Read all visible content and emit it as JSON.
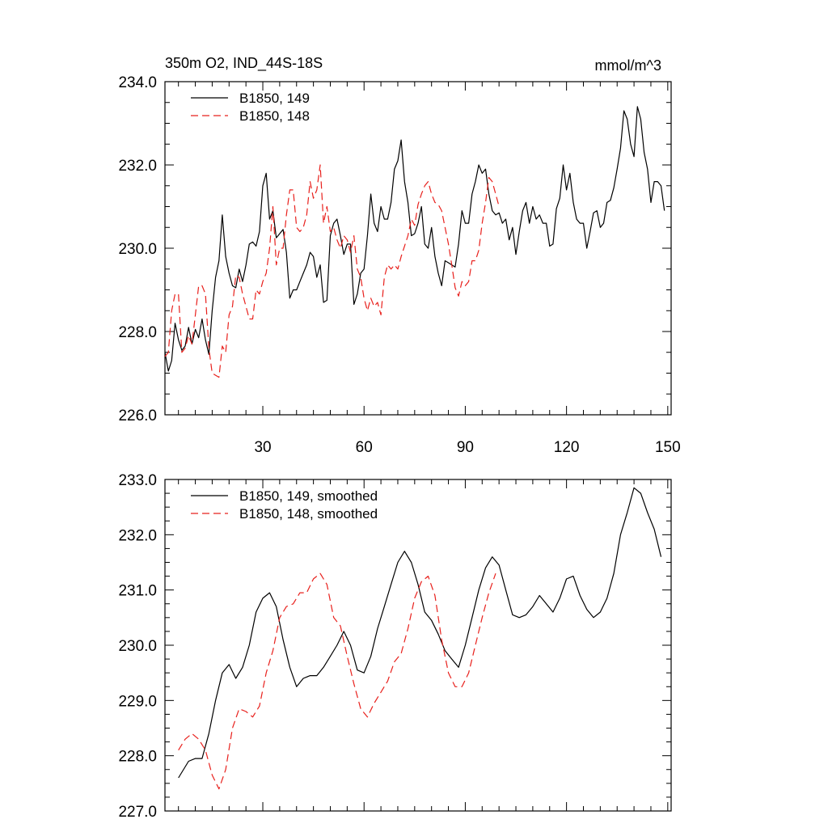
{
  "chart_data": [
    {
      "type": "line",
      "title_left": "350m O2, IND_44S-18S",
      "title_right": "mmol/m^3",
      "xlim": [
        1,
        151
      ],
      "ylim": [
        226.0,
        234.0
      ],
      "x_ticks": [
        30,
        60,
        90,
        120,
        150
      ],
      "x_tick_labels": [
        "30",
        "60",
        "90",
        "120",
        "150"
      ],
      "y_ticks": [
        226.0,
        228.0,
        230.0,
        232.0,
        234.0
      ],
      "y_tick_labels": [
        "226.0",
        "228.0",
        "230.0",
        "232.0",
        "234.0"
      ],
      "legend_position": "top-left",
      "series": [
        {
          "name": "B1850, 149",
          "color": "#000000",
          "style": "solid",
          "x_start": 1,
          "values": [
            227.5,
            227.05,
            227.3,
            228.2,
            227.8,
            227.55,
            227.65,
            228.1,
            227.7,
            228.05,
            227.85,
            228.3,
            227.8,
            227.45,
            228.5,
            229.3,
            229.7,
            230.8,
            229.8,
            229.4,
            229.1,
            229.05,
            229.5,
            229.2,
            229.6,
            230.1,
            230.15,
            230.05,
            230.4,
            231.5,
            231.8,
            230.7,
            230.9,
            230.25,
            230.35,
            230.45,
            229.9,
            228.8,
            229.0,
            229.0,
            229.2,
            229.4,
            229.6,
            229.9,
            229.8,
            229.3,
            229.6,
            228.7,
            228.75,
            230.3,
            230.6,
            230.7,
            230.3,
            229.85,
            230.1,
            230.1,
            228.65,
            228.9,
            229.4,
            229.5,
            230.3,
            231.3,
            230.6,
            230.4,
            231.0,
            230.7,
            230.7,
            231.1,
            231.9,
            232.1,
            232.6,
            231.6,
            231.1,
            230.3,
            230.35,
            230.6,
            231.0,
            230.1,
            230.0,
            230.5,
            229.8,
            229.4,
            229.1,
            229.7,
            229.65,
            229.6,
            229.55,
            230.1,
            230.9,
            230.6,
            230.6,
            231.3,
            231.6,
            232.0,
            231.8,
            231.9,
            231.3,
            230.9,
            230.8,
            230.85,
            230.6,
            230.7,
            230.2,
            230.5,
            229.85,
            230.4,
            230.9,
            231.1,
            230.6,
            231.0,
            230.7,
            230.8,
            230.6,
            230.6,
            230.05,
            230.1,
            230.95,
            231.2,
            232.0,
            231.4,
            231.8,
            231.1,
            230.7,
            230.6,
            230.6,
            230.0,
            230.4,
            230.85,
            230.9,
            230.5,
            230.6,
            231.1,
            231.15,
            231.45,
            231.9,
            232.4,
            233.3,
            233.1,
            232.5,
            232.2,
            233.4,
            233.1,
            232.3,
            231.9,
            231.1,
            231.6,
            231.6,
            231.5,
            230.9
          ]
        },
        {
          "name": "B1850, 148",
          "color": "#e8201c",
          "style": "dashed",
          "x_start": 1,
          "values": [
            227.4,
            227.5,
            228.5,
            228.9,
            228.9,
            227.5,
            227.6,
            227.9,
            227.7,
            228.4,
            229.1,
            229.1,
            228.9,
            227.6,
            227.0,
            226.95,
            226.9,
            227.65,
            227.5,
            228.4,
            228.6,
            229.35,
            229.3,
            228.9,
            228.6,
            228.3,
            228.3,
            229.0,
            228.9,
            229.2,
            229.4,
            230.0,
            231.0,
            229.6,
            230.0,
            230.0,
            230.8,
            231.4,
            231.4,
            230.5,
            230.4,
            230.5,
            230.8,
            231.6,
            231.2,
            231.4,
            232.0,
            230.6,
            231.0,
            230.4,
            230.5,
            230.2,
            230.0,
            230.3,
            230.2,
            229.9,
            230.3,
            229.5,
            229.3,
            228.8,
            228.5,
            228.8,
            228.6,
            228.7,
            228.4,
            229.3,
            229.6,
            229.5,
            229.6,
            229.5,
            229.8,
            230.05,
            230.3,
            230.7,
            230.55,
            231.05,
            231.3,
            231.5,
            231.6,
            231.3,
            231.1,
            231.05,
            230.9,
            230.5,
            230.1,
            229.6,
            229.05,
            228.85,
            229.2,
            229.1,
            229.2,
            229.7,
            229.7,
            229.95,
            230.6,
            231.1,
            231.7,
            231.6,
            231.3,
            231.0
          ]
        }
      ]
    },
    {
      "type": "line",
      "xlim": [
        1,
        151
      ],
      "ylim": [
        227.0,
        233.0
      ],
      "y_ticks": [
        227.0,
        228.0,
        229.0,
        230.0,
        231.0,
        232.0,
        233.0
      ],
      "y_tick_labels": [
        "227.0",
        "228.0",
        "229.0",
        "230.0",
        "231.0",
        "232.0",
        "233.0"
      ],
      "x_ticks": [
        30,
        60,
        90,
        120,
        150
      ],
      "legend_position": "top-left",
      "series": [
        {
          "name": "B1850, 149, smoothed",
          "color": "#000000",
          "style": "solid",
          "points": [
            [
              5,
              227.6
            ],
            [
              8,
              227.9
            ],
            [
              10,
              227.95
            ],
            [
              12,
              227.95
            ],
            [
              14,
              228.4
            ],
            [
              16,
              229.0
            ],
            [
              18,
              229.5
            ],
            [
              20,
              229.65
            ],
            [
              22,
              229.4
            ],
            [
              24,
              229.6
            ],
            [
              26,
              230.0
            ],
            [
              28,
              230.6
            ],
            [
              30,
              230.85
            ],
            [
              32,
              230.95
            ],
            [
              34,
              230.7
            ],
            [
              36,
              230.1
            ],
            [
              38,
              229.6
            ],
            [
              40,
              229.25
            ],
            [
              42,
              229.4
            ],
            [
              44,
              229.45
            ],
            [
              46,
              229.45
            ],
            [
              48,
              229.6
            ],
            [
              50,
              229.8
            ],
            [
              52,
              230.0
            ],
            [
              54,
              230.25
            ],
            [
              56,
              230.0
            ],
            [
              58,
              229.55
            ],
            [
              60,
              229.5
            ],
            [
              62,
              229.8
            ],
            [
              64,
              230.3
            ],
            [
              66,
              230.7
            ],
            [
              68,
              231.1
            ],
            [
              70,
              231.5
            ],
            [
              72,
              231.7
            ],
            [
              74,
              231.5
            ],
            [
              76,
              231.1
            ],
            [
              78,
              230.6
            ],
            [
              80,
              230.45
            ],
            [
              82,
              230.2
            ],
            [
              84,
              229.9
            ],
            [
              86,
              229.75
            ],
            [
              88,
              229.6
            ],
            [
              90,
              230.0
            ],
            [
              92,
              230.5
            ],
            [
              94,
              231.0
            ],
            [
              96,
              231.4
            ],
            [
              98,
              231.6
            ],
            [
              100,
              231.45
            ],
            [
              102,
              231.0
            ],
            [
              104,
              230.55
            ],
            [
              106,
              230.5
            ],
            [
              108,
              230.55
            ],
            [
              110,
              230.7
            ],
            [
              112,
              230.9
            ],
            [
              114,
              230.75
            ],
            [
              116,
              230.6
            ],
            [
              118,
              230.85
            ],
            [
              120,
              231.2
            ],
            [
              122,
              231.25
            ],
            [
              124,
              230.9
            ],
            [
              126,
              230.65
            ],
            [
              128,
              230.5
            ],
            [
              130,
              230.6
            ],
            [
              132,
              230.85
            ],
            [
              134,
              231.3
            ],
            [
              136,
              232.0
            ],
            [
              138,
              232.4
            ],
            [
              140,
              232.85
            ],
            [
              142,
              232.75
            ],
            [
              144,
              232.4
            ],
            [
              146,
              232.1
            ],
            [
              148,
              231.6
            ]
          ]
        },
        {
          "name": "B1850, 148, smoothed",
          "color": "#e8201c",
          "style": "dashed",
          "points": [
            [
              5,
              228.1
            ],
            [
              7,
              228.3
            ],
            [
              9,
              228.4
            ],
            [
              11,
              228.3
            ],
            [
              13,
              228.1
            ],
            [
              15,
              227.65
            ],
            [
              17,
              227.4
            ],
            [
              19,
              227.75
            ],
            [
              21,
              228.5
            ],
            [
              23,
              228.85
            ],
            [
              25,
              228.8
            ],
            [
              27,
              228.7
            ],
            [
              29,
              228.9
            ],
            [
              31,
              229.5
            ],
            [
              33,
              229.9
            ],
            [
              35,
              230.5
            ],
            [
              37,
              230.7
            ],
            [
              39,
              230.75
            ],
            [
              41,
              230.95
            ],
            [
              43,
              230.95
            ],
            [
              45,
              231.2
            ],
            [
              47,
              231.3
            ],
            [
              49,
              231.1
            ],
            [
              51,
              230.5
            ],
            [
              53,
              230.35
            ],
            [
              55,
              229.8
            ],
            [
              57,
              229.3
            ],
            [
              59,
              228.85
            ],
            [
              61,
              228.7
            ],
            [
              63,
              228.95
            ],
            [
              65,
              229.15
            ],
            [
              67,
              229.35
            ],
            [
              69,
              229.7
            ],
            [
              71,
              229.85
            ],
            [
              73,
              230.3
            ],
            [
              75,
              230.85
            ],
            [
              77,
              231.15
            ],
            [
              79,
              231.25
            ],
            [
              81,
              230.9
            ],
            [
              83,
              230.1
            ],
            [
              85,
              229.5
            ],
            [
              87,
              229.25
            ],
            [
              89,
              229.25
            ],
            [
              91,
              229.5
            ],
            [
              93,
              230.0
            ],
            [
              95,
              230.5
            ],
            [
              97,
              230.95
            ],
            [
              99,
              231.3
            ]
          ]
        }
      ]
    }
  ]
}
